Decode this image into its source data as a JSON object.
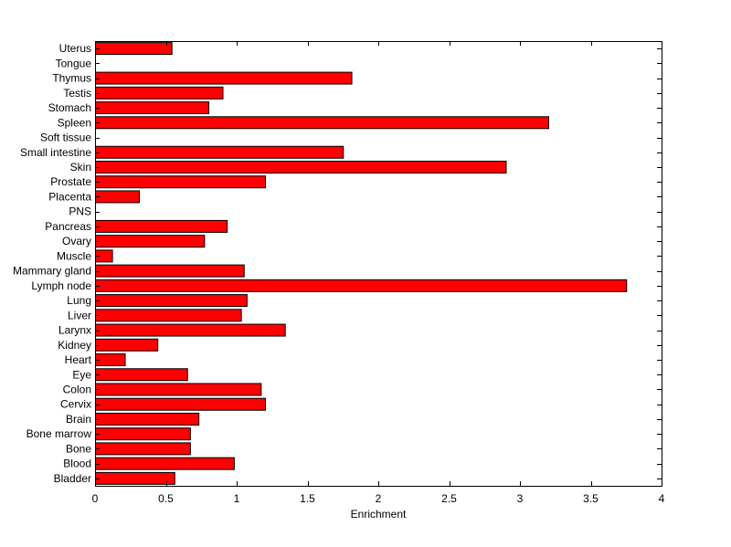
{
  "chart_data": {
    "type": "bar",
    "orientation": "horizontal",
    "title": "",
    "xlabel": "Enrichment",
    "ylabel": "",
    "xlim": [
      0,
      4
    ],
    "xticks": [
      0,
      0.5,
      1,
      1.5,
      2,
      2.5,
      3,
      3.5,
      4
    ],
    "grid": false,
    "legend": "none",
    "bar_color": "#ff0000",
    "bar_edge_color": "#000000",
    "categories": [
      "Bladder",
      "Blood",
      "Bone",
      "Bone marrow",
      "Brain",
      "Cervix",
      "Colon",
      "Eye",
      "Heart",
      "Kidney",
      "Larynx",
      "Liver",
      "Lung",
      "Lymph node",
      "Mammary gland",
      "Muscle",
      "Ovary",
      "Pancreas",
      "PNS",
      "Placenta",
      "Prostate",
      "Skin",
      "Small intestine",
      "Soft tissue",
      "Spleen",
      "Stomach",
      "Testis",
      "Thymus",
      "Tongue",
      "Uterus"
    ],
    "values": [
      0.56,
      0.98,
      0.67,
      0.67,
      0.73,
      1.2,
      1.17,
      0.65,
      0.21,
      0.44,
      1.34,
      1.03,
      1.07,
      3.75,
      1.05,
      0.12,
      0.77,
      0.93,
      0,
      0.31,
      1.2,
      2.9,
      1.75,
      0,
      3.2,
      0.8,
      0.9,
      1.81,
      0,
      0.54
    ]
  }
}
